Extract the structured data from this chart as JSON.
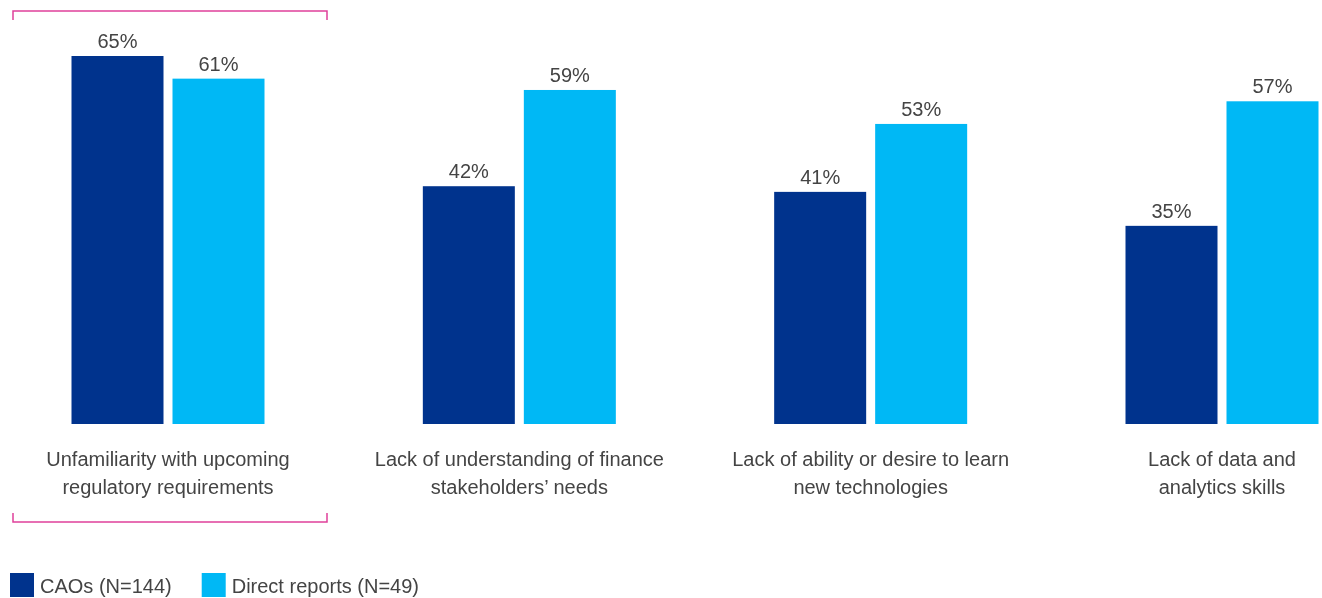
{
  "chart_data": {
    "type": "bar",
    "categories": [
      "Unfamiliarity with upcoming regulatory requirements",
      "Lack of understanding of finance stakeholders’ needs",
      "Lack of ability or desire to learn new technologies",
      "Lack of data and analytics skills"
    ],
    "series": [
      {
        "name": "CAOs (N=144)",
        "color": "#00338d",
        "values": [
          65,
          42,
          41,
          35
        ],
        "value_labels": [
          "65%",
          "42%",
          "41%",
          "35%"
        ]
      },
      {
        "name": "Direct reports (N=49)",
        "color": "#00b8f5",
        "values": [
          61,
          59,
          53,
          57
        ],
        "value_labels": [
          "61%",
          "59%",
          "53%",
          "57%"
        ]
      }
    ],
    "legend": "bottom left"
  }
}
